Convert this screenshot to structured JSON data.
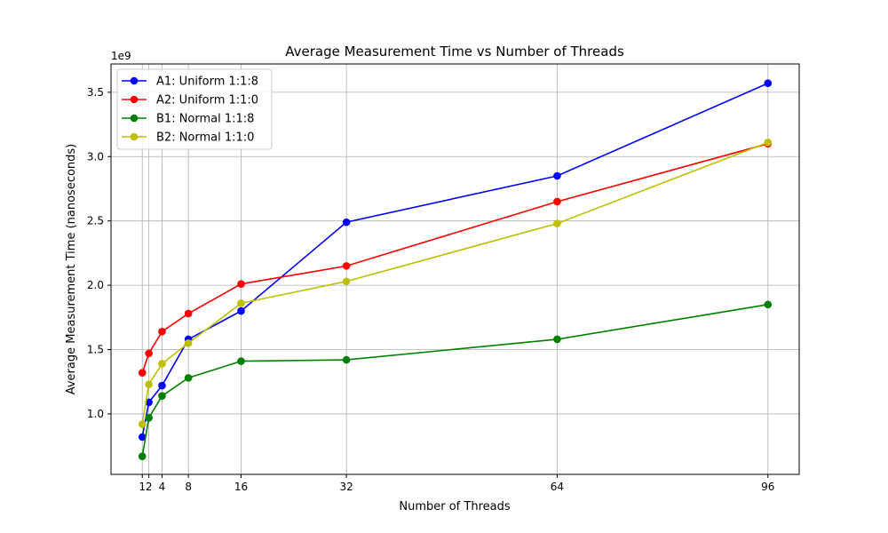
{
  "chart_data": {
    "type": "line",
    "title": "Average Measurement Time vs Number of Threads",
    "xlabel": "Number of Threads",
    "ylabel": "Average Measurement Time (nanoseconds)",
    "y_offset_label": "1e9",
    "x": [
      1,
      2,
      4,
      8,
      16,
      32,
      64,
      96
    ],
    "x_ticks": [
      1,
      2,
      4,
      8,
      16,
      32,
      64,
      96
    ],
    "x_tick_labels": [
      "1",
      "2",
      "4",
      "8",
      "16",
      "32",
      "64",
      "96"
    ],
    "y_ticks": [
      1.0,
      1.5,
      2.0,
      2.5,
      3.0,
      3.5
    ],
    "y_tick_labels": [
      "1.0",
      "1.5",
      "2.0",
      "2.5",
      "3.0",
      "3.5"
    ],
    "xlim": [
      -3.75,
      100.75
    ],
    "ylim": [
      0.53,
      3.72
    ],
    "grid": true,
    "legend_position": "top-left",
    "series": [
      {
        "name": "A1: Uniform 1:1:8",
        "color": "#0000ff",
        "values": [
          0.82,
          1.09,
          1.22,
          1.58,
          1.8,
          2.49,
          2.85,
          3.57
        ]
      },
      {
        "name": "A2: Uniform 1:1:0",
        "color": "#ff0000",
        "values": [
          1.32,
          1.47,
          1.64,
          1.78,
          2.01,
          2.15,
          2.65,
          3.1
        ]
      },
      {
        "name": "B1: Normal 1:1:8",
        "color": "#008000",
        "values": [
          0.67,
          0.97,
          1.14,
          1.28,
          1.41,
          1.42,
          1.58,
          1.85
        ]
      },
      {
        "name": "B2: Normal 1:1:0",
        "color": "#bfbf00",
        "values": [
          0.92,
          1.23,
          1.39,
          1.55,
          1.86,
          2.03,
          2.48,
          3.11
        ]
      }
    ]
  }
}
